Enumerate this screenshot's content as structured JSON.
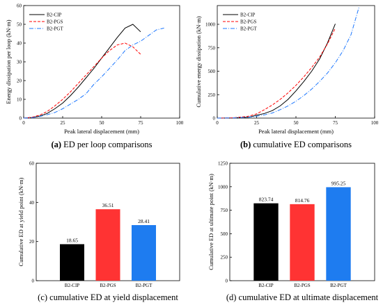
{
  "chart_data": [
    {
      "id": "a",
      "type": "line",
      "caption_letter": "(a)",
      "caption_text": " ED per loop comparisons",
      "xlabel": "Peak lateral displacement (mm)",
      "ylabel": "Energy dissipation per loop (kN·m)",
      "xlim": [
        0,
        100
      ],
      "ylim": [
        0,
        60
      ],
      "xticks": [
        0,
        25,
        50,
        75,
        100
      ],
      "yticks": [
        0,
        10,
        20,
        30,
        40,
        50,
        60
      ],
      "legend_position": "top-left",
      "series": [
        {
          "name": "B2-CIP",
          "color": "#000000",
          "dash": "",
          "points": [
            [
              0,
              0
            ],
            [
              5,
              0.3
            ],
            [
              10,
              1
            ],
            [
              15,
              2.5
            ],
            [
              20,
              5
            ],
            [
              25,
              8
            ],
            [
              30,
              12
            ],
            [
              35,
              16.5
            ],
            [
              40,
              21.5
            ],
            [
              45,
              26.5
            ],
            [
              50,
              32
            ],
            [
              55,
              37.5
            ],
            [
              60,
              43
            ],
            [
              65,
              48
            ],
            [
              70,
              50
            ],
            [
              75,
              46
            ]
          ]
        },
        {
          "name": "B2-PGS",
          "color": "#ff0000",
          "dash": "4,2",
          "points": [
            [
              0,
              0
            ],
            [
              5,
              0.4
            ],
            [
              10,
              1.5
            ],
            [
              15,
              3.5
            ],
            [
              20,
              6.5
            ],
            [
              25,
              10
            ],
            [
              30,
              14
            ],
            [
              35,
              18.5
            ],
            [
              40,
              23
            ],
            [
              45,
              27.5
            ],
            [
              50,
              32
            ],
            [
              55,
              36
            ],
            [
              60,
              39
            ],
            [
              65,
              40
            ],
            [
              70,
              38
            ],
            [
              75,
              34
            ]
          ]
        },
        {
          "name": "B2-PGT",
          "color": "#1e78ff",
          "dash": "6,2,1,2",
          "points": [
            [
              0,
              0
            ],
            [
              5,
              0.2
            ],
            [
              10,
              0.8
            ],
            [
              15,
              1.8
            ],
            [
              20,
              3
            ],
            [
              25,
              5
            ],
            [
              30,
              7.5
            ],
            [
              35,
              10
            ],
            [
              40,
              13
            ],
            [
              45,
              18
            ],
            [
              50,
              22
            ],
            [
              55,
              26.5
            ],
            [
              60,
              31
            ],
            [
              65,
              36
            ],
            [
              70,
              39
            ],
            [
              75,
              41
            ],
            [
              80,
              44
            ],
            [
              85,
              47
            ],
            [
              90,
              48
            ]
          ]
        }
      ]
    },
    {
      "id": "b",
      "type": "line",
      "caption_letter": "(b)",
      "caption_text": " cumulative ED comparisons",
      "xlabel": "Peak lateral displacement (mm)",
      "ylabel": "Cumulative energy dissipation (kN·m)",
      "xlim": [
        0,
        100
      ],
      "ylim": [
        0,
        1200
      ],
      "xticks": [
        0,
        25,
        50,
        75,
        100
      ],
      "yticks": [
        0,
        250,
        500,
        750,
        1000
      ],
      "legend_position": "top-left",
      "series": [
        {
          "name": "B2-CIP",
          "color": "#000000",
          "dash": "",
          "points": [
            [
              0,
              0
            ],
            [
              10,
              2
            ],
            [
              20,
              10
            ],
            [
              25,
              30
            ],
            [
              30,
              50
            ],
            [
              35,
              80
            ],
            [
              40,
              130
            ],
            [
              45,
              200
            ],
            [
              50,
              290
            ],
            [
              55,
              390
            ],
            [
              60,
              500
            ],
            [
              65,
              630
            ],
            [
              70,
              800
            ],
            [
              75,
              1005
            ]
          ]
        },
        {
          "name": "B2-PGS",
          "color": "#ff0000",
          "dash": "4,2",
          "points": [
            [
              0,
              0
            ],
            [
              10,
              3
            ],
            [
              20,
              20
            ],
            [
              25,
              45
            ],
            [
              30,
              90
            ],
            [
              35,
              140
            ],
            [
              40,
              200
            ],
            [
              45,
              270
            ],
            [
              50,
              350
            ],
            [
              55,
              440
            ],
            [
              60,
              540
            ],
            [
              65,
              650
            ],
            [
              70,
              790
            ],
            [
              75,
              960
            ]
          ]
        },
        {
          "name": "B2-PGT",
          "color": "#1e78ff",
          "dash": "6,2,1,2",
          "points": [
            [
              0,
              0
            ],
            [
              10,
              2
            ],
            [
              20,
              10
            ],
            [
              25,
              20
            ],
            [
              30,
              35
            ],
            [
              35,
              55
            ],
            [
              40,
              90
            ],
            [
              45,
              130
            ],
            [
              50,
              180
            ],
            [
              55,
              240
            ],
            [
              60,
              310
            ],
            [
              65,
              390
            ],
            [
              70,
              480
            ],
            [
              75,
              590
            ],
            [
              80,
              720
            ],
            [
              85,
              890
            ],
            [
              90,
              1180
            ]
          ]
        }
      ]
    },
    {
      "id": "c",
      "type": "bar",
      "caption_text": "(c) cumulative ED at yield displacement",
      "ylabel": "Cumulative ED at yield point (kN·m)",
      "ylim": [
        0,
        60
      ],
      "yticks": [
        0,
        20,
        40,
        60
      ],
      "categories": [
        "B2-CIP",
        "B2-PGS",
        "B2-PGT"
      ],
      "values": [
        18.65,
        36.51,
        28.41
      ],
      "value_labels": [
        "18.65",
        "36.51",
        "28.41"
      ],
      "colors": [
        "#000000",
        "#ff3333",
        "#1e7cf0"
      ]
    },
    {
      "id": "d",
      "type": "bar",
      "caption_text": "(d) cumulative ED at ultimate displacement",
      "ylabel": "Cumulative ED at ultimate point (kN·m)",
      "ylim": [
        0,
        1250
      ],
      "yticks": [
        0,
        250,
        500,
        750,
        1000,
        1250
      ],
      "categories": [
        "B2-CIP",
        "B2-PGS",
        "B2-PGT"
      ],
      "values": [
        823.74,
        814.76,
        995.25
      ],
      "value_labels": [
        "823.74",
        "814.76",
        "995.25"
      ],
      "colors": [
        "#000000",
        "#ff3333",
        "#1e7cf0"
      ]
    }
  ]
}
